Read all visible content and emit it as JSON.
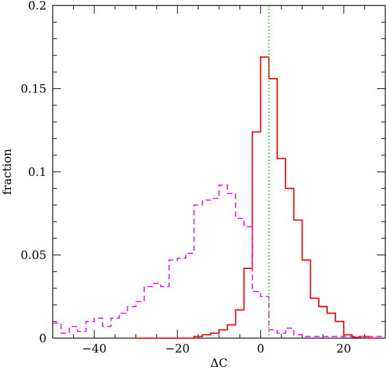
{
  "chart_data": {
    "type": "histogram",
    "title": "",
    "xlabel": "ΔC",
    "ylabel": "fraction",
    "xlim": [
      -50,
      30
    ],
    "ylim": [
      0,
      0.2
    ],
    "grid": false,
    "x_ticks": [
      -40,
      -20,
      0,
      20
    ],
    "x_tick_labels": [
      "−40",
      "−20",
      "0",
      "20"
    ],
    "y_ticks": [
      0,
      0.05,
      0.1,
      0.15,
      0.2
    ],
    "y_tick_labels": [
      "0",
      "0.05",
      "0.1",
      "0.15",
      "0.2"
    ],
    "series": [
      {
        "style": "solid",
        "color": "#ff0000",
        "bin_edges": [
          -30,
          -16,
          -14,
          -12,
          -10,
          -8,
          -6,
          -4,
          -2,
          0,
          2,
          4,
          6,
          8,
          10,
          12,
          14,
          16,
          18,
          20,
          22,
          24,
          26,
          28
        ],
        "values": [
          0,
          0.001,
          0.002,
          0.003,
          0.005,
          0.008,
          0.017,
          0.042,
          0.124,
          0.169,
          0.156,
          0.108,
          0.09,
          0.071,
          0.047,
          0.024,
          0.019,
          0.015,
          0.01,
          0.002,
          0.0005,
          0.001,
          0
        ]
      },
      {
        "style": "dashed",
        "color": "#ff00ff",
        "bin_edges": [
          -50,
          -48,
          -46,
          -44,
          -42,
          -40,
          -38,
          -36,
          -34,
          -32,
          -30,
          -28,
          -26,
          -24,
          -22,
          -20,
          -18,
          -16,
          -14,
          -12,
          -10,
          -8,
          -6,
          -4,
          -2,
          0,
          2,
          4,
          6,
          8,
          10,
          30
        ],
        "values": [
          0.009,
          0.003,
          0.007,
          0.004,
          0.01,
          0.012,
          0.007,
          0.012,
          0.015,
          0.019,
          0.022,
          0.031,
          0.033,
          0.031,
          0.047,
          0.048,
          0.051,
          0.08,
          0.083,
          0.084,
          0.092,
          0.087,
          0.072,
          0.067,
          0.028,
          0.025,
          0.005,
          0.003,
          0.006,
          0.002,
          0.001
        ]
      }
    ],
    "vertical_line": {
      "x": 2,
      "color": "#00cc00",
      "style": "dotted"
    }
  }
}
